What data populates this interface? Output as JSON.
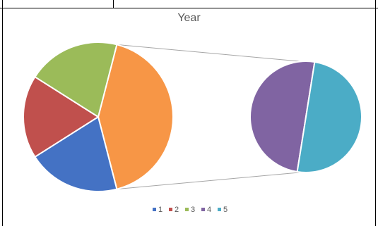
{
  "chart_data": {
    "type": "pie",
    "subtype": "pie-of-pie",
    "title": "Year",
    "categories": [
      "1",
      "2",
      "3",
      "4",
      "5"
    ],
    "values": [
      20,
      18,
      20,
      21,
      21
    ],
    "colors": [
      "#4472C4",
      "#C0504D",
      "#9BBB59",
      "#8064A2",
      "#4BACC6"
    ],
    "other_color": "#F79646",
    "secondary_plot": [
      "4",
      "5"
    ],
    "legend_position": "bottom"
  }
}
